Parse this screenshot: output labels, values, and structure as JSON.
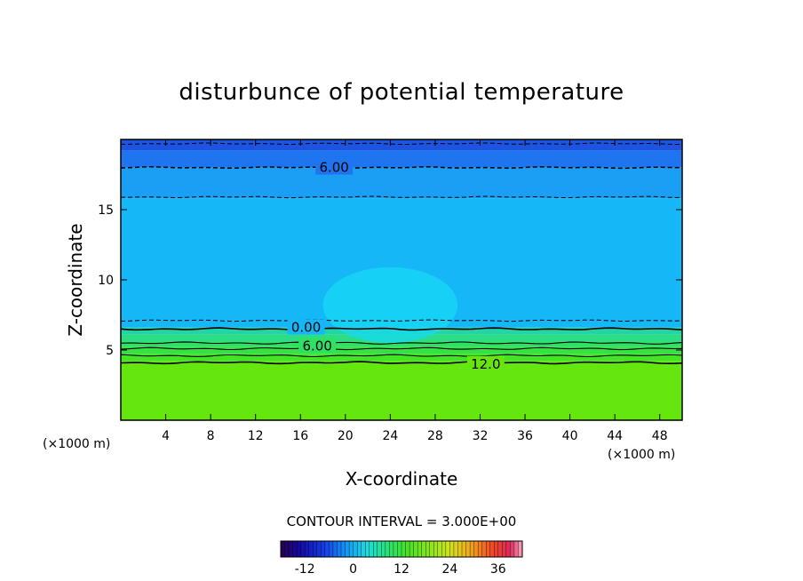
{
  "chart_data": {
    "type": "contour",
    "title": "disturbunce of potential temperature",
    "xlabel": "X-coordinate",
    "ylabel": "Z-coordinate",
    "x_unit_left": "(×1000 m)",
    "x_unit_right": "(×1000 m)",
    "xlim": [
      0,
      50
    ],
    "ylim": [
      0,
      20
    ],
    "x_ticks": [
      4,
      8,
      12,
      16,
      20,
      24,
      28,
      32,
      36,
      40,
      44,
      48
    ],
    "y_ticks": [
      5,
      10,
      15
    ],
    "contour_interval_text": "CONTOUR INTERVAL = 3.000E+00",
    "contour_labels": [
      {
        "text": "6.00",
        "x": 19.0,
        "z": 18.0,
        "style": "dashed"
      },
      {
        "text": "0.00",
        "x": 16.5,
        "z": 6.6,
        "style": "solid"
      },
      {
        "text": "6.00",
        "x": 17.5,
        "z": 5.3,
        "style": "solid"
      },
      {
        "text": "12.0",
        "x": 32.5,
        "z": 4.0,
        "style": "solid"
      }
    ],
    "bands": [
      {
        "z_bottom": 19.2,
        "z_top": 20.0,
        "value": -9,
        "color": "#1d54e0"
      },
      {
        "z_bottom": 18.0,
        "z_top": 19.2,
        "value": -6,
        "color": "#1f75f0"
      },
      {
        "z_bottom": 15.8,
        "z_top": 18.0,
        "value": -3,
        "color": "#1b9ff4"
      },
      {
        "z_bottom": 6.6,
        "z_top": 15.8,
        "value": -1.5,
        "color": "#15b7f6"
      },
      {
        "z_bottom": 6.1,
        "z_top": 6.6,
        "value": 1.5,
        "color": "#21d6a4"
      },
      {
        "z_bottom": 5.6,
        "z_top": 6.1,
        "value": 3,
        "color": "#2bde86"
      },
      {
        "z_bottom": 5.2,
        "z_top": 5.6,
        "value": 4.5,
        "color": "#2fe065"
      },
      {
        "z_bottom": 4.7,
        "z_top": 5.2,
        "value": 7.5,
        "color": "#36e241"
      },
      {
        "z_bottom": 4.2,
        "z_top": 4.7,
        "value": 10.5,
        "color": "#43e423"
      },
      {
        "z_bottom": 0.0,
        "z_top": 4.2,
        "value": 13.5,
        "color": "#66e60f"
      }
    ],
    "solid_contours_z": [
      6.5,
      5.5,
      5.1,
      4.6,
      4.1
    ],
    "dashed_contours_z": [
      19.7,
      18.0,
      15.9,
      7.1
    ],
    "colorbar": {
      "min": -18,
      "max": 42,
      "tick_labels": [
        "-12",
        "0",
        "12",
        "24",
        "36"
      ],
      "tick_values": [
        -12,
        0,
        12,
        24,
        36
      ]
    }
  }
}
